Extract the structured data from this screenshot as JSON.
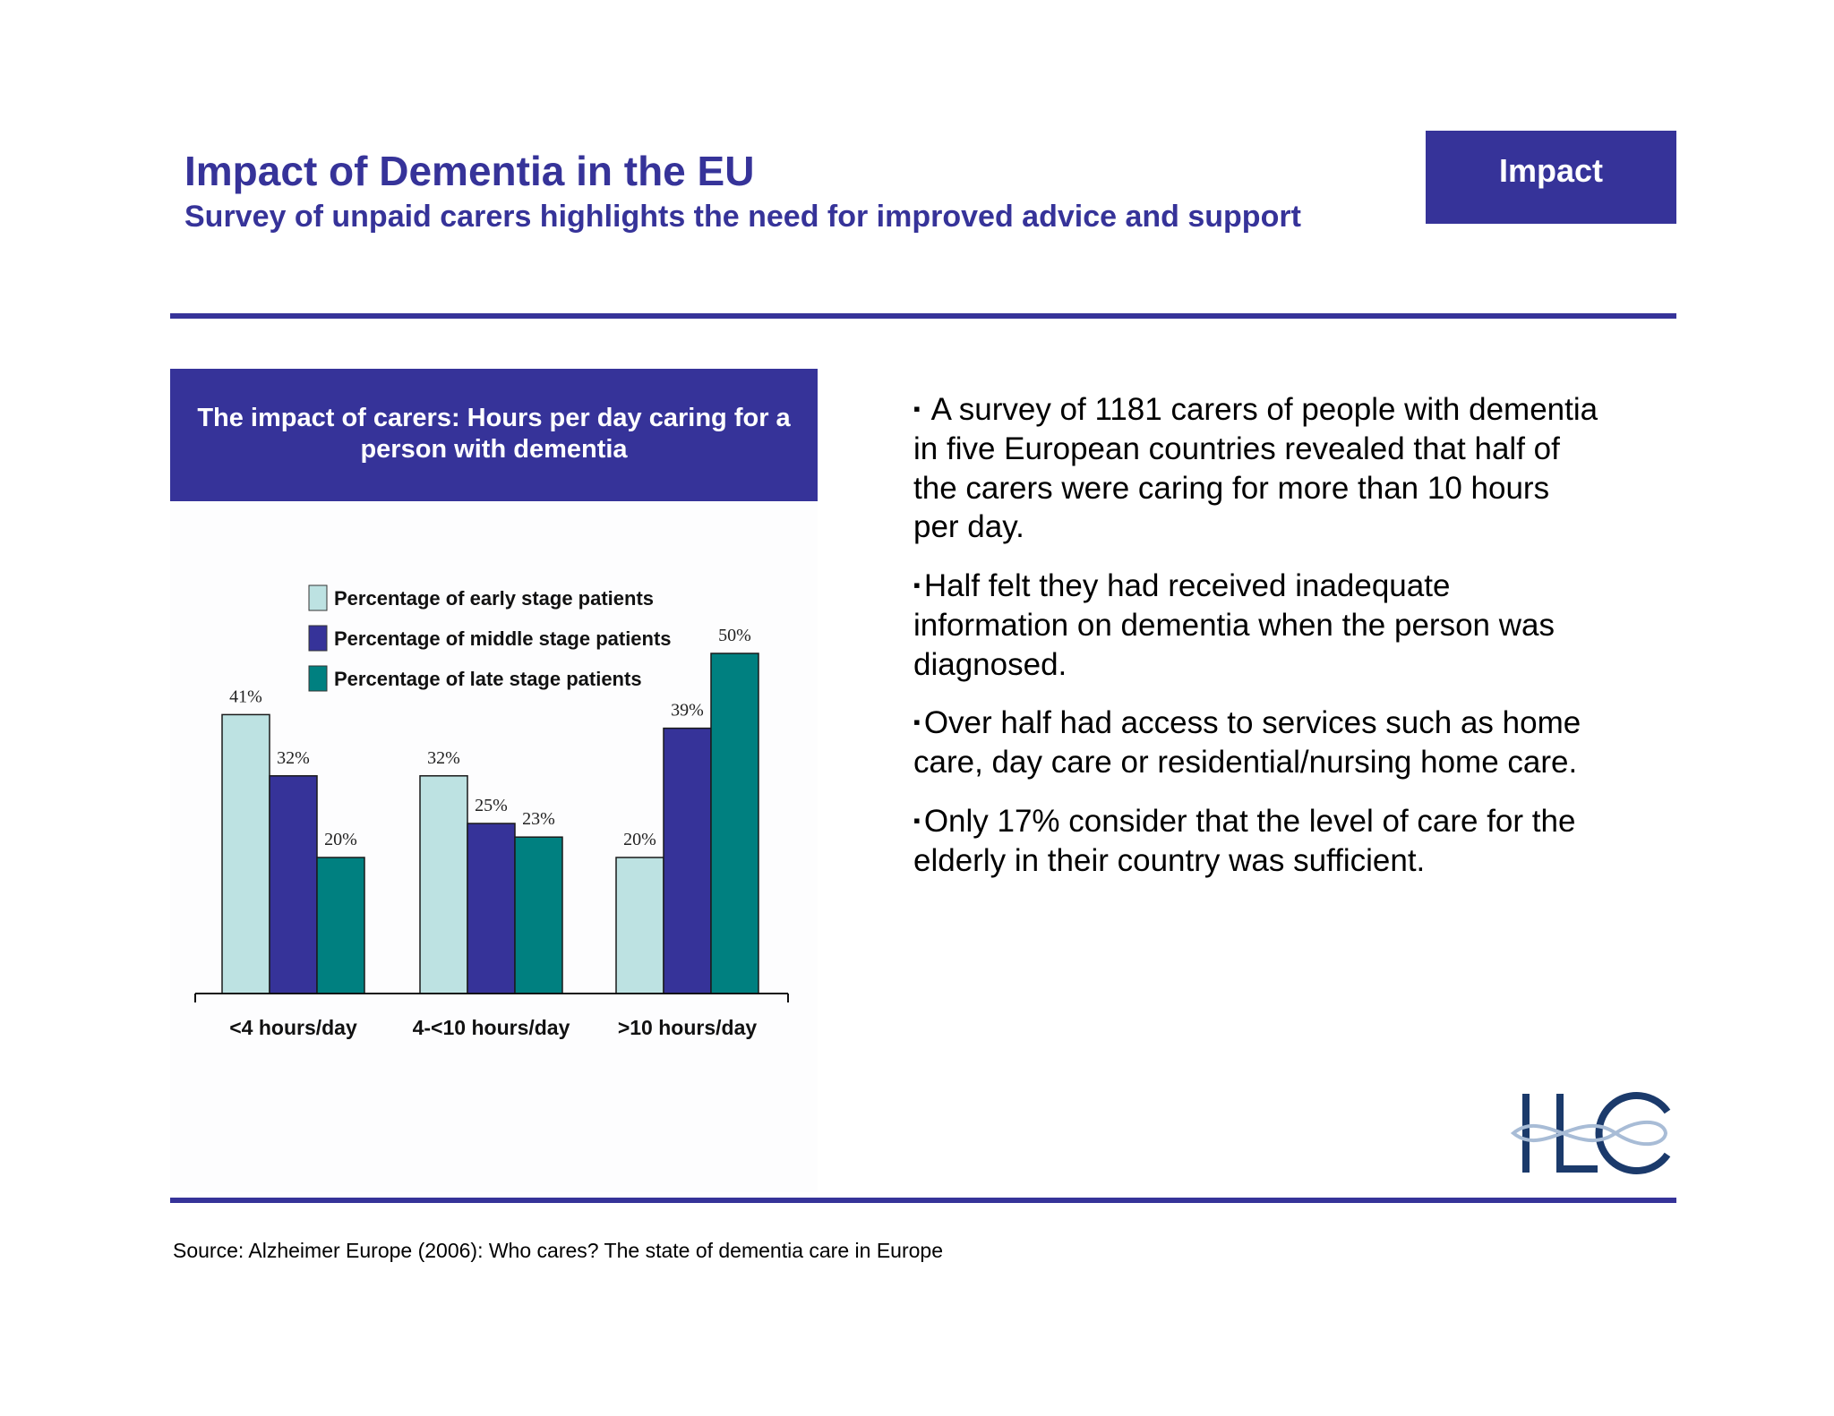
{
  "header": {
    "title": "Impact of Dementia in the EU",
    "subtitle": "Survey of unpaid carers highlights the need for improved advice and support",
    "badge": "Impact"
  },
  "chart_header": "The impact of carers: Hours per day caring for a person with dementia",
  "chart_data": {
    "type": "bar",
    "categories": [
      "<4 hours/day",
      "4-<10 hours/day",
      ">10 hours/day"
    ],
    "series": [
      {
        "name": "Percentage of early stage patients",
        "color": "#bde2e2",
        "values": [
          41,
          32,
          20
        ],
        "labels": [
          "41%",
          "32%",
          "20%"
        ]
      },
      {
        "name": "Percentage of middle stage patients",
        "color": "#363399",
        "values": [
          32,
          25,
          39
        ],
        "labels": [
          "32%",
          "25%",
          "39%"
        ]
      },
      {
        "name": "Percentage of late stage patients",
        "color": "#008080",
        "values": [
          20,
          23,
          50
        ],
        "labels": [
          "20%",
          "23%",
          "50%"
        ]
      }
    ],
    "ylim": [
      0,
      50
    ],
    "grid": false,
    "legend_position": "top"
  },
  "bullets": [
    {
      "marker": "▪",
      "text": " A survey of 1181 carers of people with dementia in five European countries revealed that half of the carers were caring for more than 10 hours per day."
    },
    {
      "marker": "▪",
      "text": "Half felt they had received inadequate information on dementia when the person was diagnosed."
    },
    {
      "marker": "▪",
      "text": "Over half had access to services such as home care, day care or residential/nursing home care."
    },
    {
      "marker": "▪",
      "text": "Only 17% consider that the level of care for the elderly in their country was sufficient."
    }
  ],
  "logo": {
    "text": "ILC",
    "color": "#1b3a6b",
    "accent": "#a8bcd6"
  },
  "source": "Source: Alzheimer Europe (2006): Who cares? The state of dementia care in Europe"
}
